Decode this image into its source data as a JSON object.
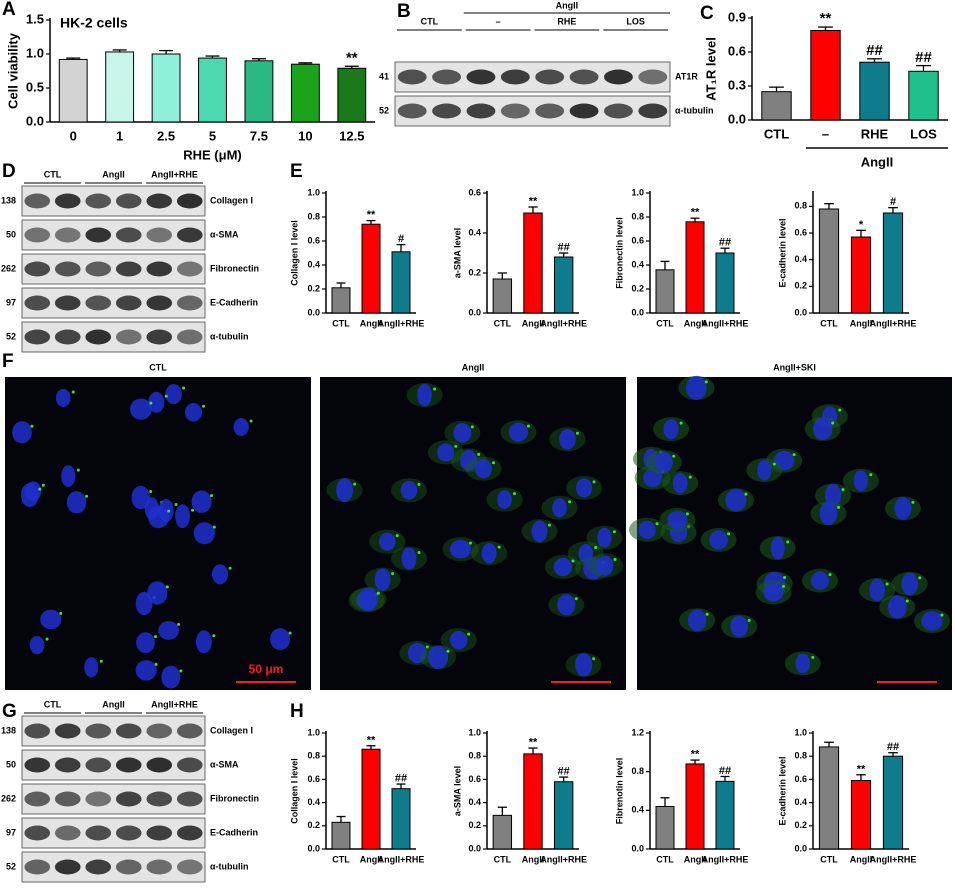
{
  "chart_data": [
    {
      "type": "bar",
      "panel": "A",
      "title": "HK-2 cells",
      "y_label": "Cell viability",
      "x_label": "RHE (μM)",
      "categories": [
        "0",
        "1",
        "2.5",
        "5",
        "7.5",
        "10",
        "12.5"
      ],
      "values": [
        0.92,
        1.03,
        1.0,
        0.94,
        0.9,
        0.85,
        0.79
      ],
      "errors": [
        0.02,
        0.03,
        0.05,
        0.03,
        0.03,
        0.02,
        0.03
      ],
      "colors": [
        "#d3d3d3",
        "#c8f5ea",
        "#8ff0d8",
        "#4cd9b0",
        "#2ab883",
        "#1ca31c",
        "#1a7a1a"
      ],
      "annotations": [
        null,
        null,
        null,
        null,
        null,
        null,
        "**"
      ],
      "ylim": [
        0,
        1.5
      ],
      "yticks": [
        {
          "value": 0,
          "label": "0.0"
        },
        0.5,
        {
          "value": 1,
          "label": "1.0"
        },
        1.5
      ]
    },
    {
      "type": "bar",
      "panel": "C",
      "y_label": "AT₁R level",
      "group_label": "AngII",
      "categories": [
        "CTL",
        "–",
        "RHE",
        "LOS"
      ],
      "values": [
        0.25,
        0.79,
        0.51,
        0.43
      ],
      "errors": [
        0.04,
        0.03,
        0.03,
        0.05
      ],
      "colors": [
        "#808080",
        "#ff0000",
        "#0e7c8c",
        "#20c08c"
      ],
      "annotations": [
        null,
        "**",
        "##",
        "##"
      ],
      "ylim": [
        0,
        0.9
      ],
      "yticks": [
        {
          "value": 0,
          "label": "0.0"
        },
        0.3,
        0.6,
        0.9
      ]
    },
    {
      "type": "bar",
      "panel": "E",
      "y_label": "Collagen I level",
      "categories": [
        "CTL",
        "AngII",
        "AngII+RHE"
      ],
      "values": [
        0.21,
        0.74,
        0.51
      ],
      "errors": [
        0.04,
        0.03,
        0.06
      ],
      "colors": [
        "#808080",
        "#ff0000",
        "#0e7c8c"
      ],
      "annotations": [
        null,
        "**",
        "#"
      ],
      "ylim": [
        0,
        1.0
      ],
      "yticks": [
        {
          "value": 0,
          "label": "0.0"
        },
        0.2,
        0.4,
        0.6,
        0.8,
        {
          "value": 1,
          "label": "1.0"
        }
      ]
    },
    {
      "type": "bar",
      "y_label": "a-SMA level",
      "categories": [
        "CTL",
        "AngII",
        "AngII+RHE"
      ],
      "values": [
        0.17,
        0.5,
        0.28
      ],
      "errors": [
        0.03,
        0.03,
        0.02
      ],
      "colors": [
        "#808080",
        "#ff0000",
        "#0e7c8c"
      ],
      "annotations": [
        null,
        "**",
        "##"
      ],
      "ylim": [
        0,
        0.6
      ],
      "yticks": [
        {
          "value": 0,
          "label": "0.0"
        },
        0.2,
        0.4,
        0.6
      ]
    },
    {
      "type": "bar",
      "y_label": "Fibronectin level",
      "categories": [
        "CTL",
        "AngII",
        "AngII+RHE"
      ],
      "values": [
        0.36,
        0.76,
        0.5
      ],
      "errors": [
        0.07,
        0.03,
        0.04
      ],
      "colors": [
        "#808080",
        "#ff0000",
        "#0e7c8c"
      ],
      "annotations": [
        null,
        "**",
        "##"
      ],
      "ylim": [
        0,
        1.0
      ],
      "yticks": [
        {
          "value": 0,
          "label": "0.0"
        },
        0.2,
        0.4,
        0.6,
        0.8,
        {
          "value": 1,
          "label": "1.0"
        }
      ]
    },
    {
      "type": "bar",
      "y_label": "E-cadherin level",
      "categories": [
        "CTL",
        "AngII",
        "AngII+RHE"
      ],
      "values": [
        0.78,
        0.57,
        0.75
      ],
      "errors": [
        0.04,
        0.05,
        0.04
      ],
      "colors": [
        "#808080",
        "#ff0000",
        "#0e7c8c"
      ],
      "annotations": [
        null,
        "*",
        "#"
      ],
      "ylim": [
        0,
        0.9
      ],
      "yticks": [
        {
          "value": 0,
          "label": "0.0"
        },
        0.2,
        0.4,
        0.6,
        0.8
      ]
    },
    {
      "type": "bar",
      "panel": "H",
      "y_label": "Collagen I level",
      "categories": [
        "CTL",
        "AngII",
        "AngII+RHE"
      ],
      "values": [
        0.23,
        0.86,
        0.52
      ],
      "errors": [
        0.05,
        0.03,
        0.04
      ],
      "colors": [
        "#808080",
        "#ff0000",
        "#0e7c8c"
      ],
      "annotations": [
        null,
        "**",
        "##"
      ],
      "ylim": [
        0,
        1.0
      ],
      "yticks": [
        {
          "value": 0,
          "label": "0.0"
        },
        0.2,
        0.4,
        0.6,
        0.8,
        {
          "value": 1,
          "label": "1.0"
        }
      ]
    },
    {
      "type": "bar",
      "y_label": "a-SMA level",
      "categories": [
        "CTL",
        "AngII",
        "AngII+RHE"
      ],
      "values": [
        0.29,
        0.82,
        0.58
      ],
      "errors": [
        0.07,
        0.05,
        0.04
      ],
      "colors": [
        "#808080",
        "#ff0000",
        "#0e7c8c"
      ],
      "annotations": [
        null,
        "**",
        "##"
      ],
      "ylim": [
        0,
        1.0
      ],
      "yticks": [
        {
          "value": 0,
          "label": "0.0"
        },
        0.2,
        0.4,
        0.6,
        0.8,
        {
          "value": 1,
          "label": "1.0"
        }
      ]
    },
    {
      "type": "bar",
      "y_label": "Fibrenotin level",
      "categories": [
        "CTL",
        "AngII",
        "AngII+RHE"
      ],
      "values": [
        0.44,
        0.88,
        0.7
      ],
      "errors": [
        0.09,
        0.04,
        0.05
      ],
      "colors": [
        "#808080",
        "#ff0000",
        "#0e7c8c"
      ],
      "annotations": [
        null,
        "**",
        "##"
      ],
      "ylim": [
        0,
        1.2
      ],
      "yticks": [
        {
          "value": 0,
          "label": "0.0"
        },
        0.4,
        0.8,
        1.2
      ]
    },
    {
      "type": "bar",
      "y_label": "E-cadherin level",
      "categories": [
        "CTL",
        "AngII",
        "AngII+RHE"
      ],
      "values": [
        0.88,
        0.59,
        0.8
      ],
      "errors": [
        0.04,
        0.05,
        0.03
      ],
      "colors": [
        "#808080",
        "#ff0000",
        "#0e7c8c"
      ],
      "annotations": [
        null,
        "**",
        "##"
      ],
      "ylim": [
        0,
        1.0
      ],
      "yticks": [
        {
          "value": 0,
          "label": "0.0"
        },
        0.2,
        0.4,
        0.6,
        0.8,
        {
          "value": 1,
          "label": "1.0"
        }
      ]
    }
  ],
  "blots": [
    {
      "panel": "B",
      "group_label": "AngII",
      "lanes": [
        "CTL",
        "–",
        "RHE",
        "LOS"
      ],
      "rows": [
        {
          "kda": "41",
          "protein": "AT1R"
        },
        {
          "kda": "52",
          "protein": "α-tubulin"
        }
      ]
    },
    {
      "panel": "D",
      "lanes": [
        "CTL",
        "AngII",
        "AngII+RHE"
      ],
      "rows": [
        {
          "kda": "138",
          "protein": "Collagen I"
        },
        {
          "kda": "50",
          "protein": "α-SMA"
        },
        {
          "kda": "262",
          "protein": "Fibronectin"
        },
        {
          "kda": "97",
          "protein": "E-Cadherin"
        },
        {
          "kda": "52",
          "protein": "α-tubulin"
        }
      ]
    },
    {
      "panel": "G",
      "lanes": [
        "CTL",
        "AngII",
        "AngII+RHE"
      ],
      "rows": [
        {
          "kda": "138",
          "protein": "Collagen I"
        },
        {
          "kda": "50",
          "protein": "α-SMA"
        },
        {
          "kda": "262",
          "protein": "Fibronectin"
        },
        {
          "kda": "97",
          "protein": "E-Cadherin"
        },
        {
          "kda": "52",
          "protein": "α-tubulin"
        }
      ]
    }
  ],
  "images": {
    "panel": "F",
    "scale_bar": "50 μm",
    "titles": [
      "CTL",
      "AngII",
      "AngII+SKI"
    ]
  }
}
